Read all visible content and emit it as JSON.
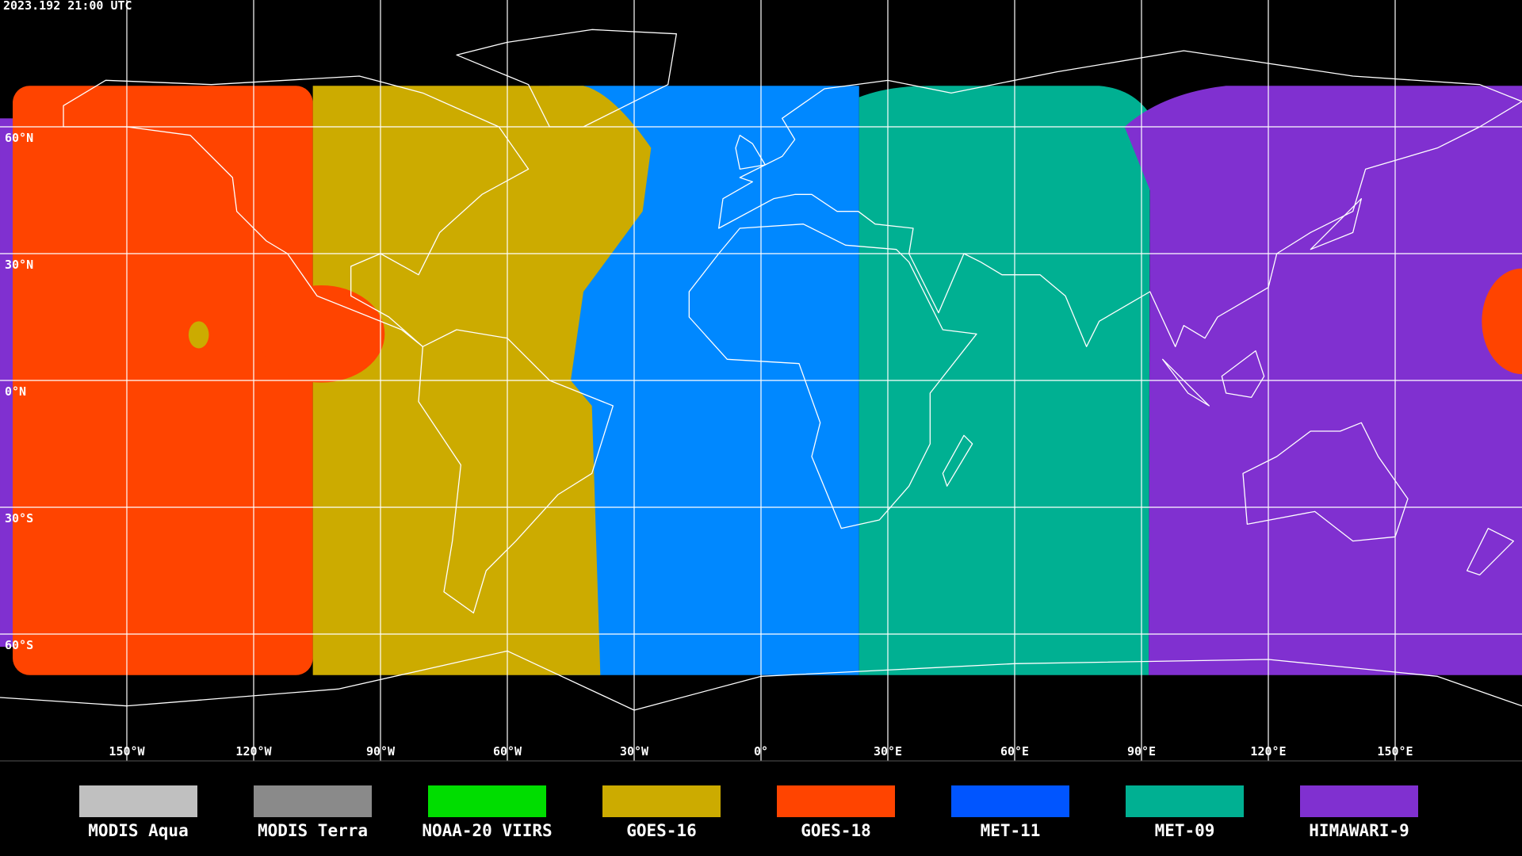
{
  "header": {
    "timestamp": "2023.192 21:00 UTC"
  },
  "map": {
    "latitude_labels": [
      "60°N",
      "30°N",
      "0°N",
      "30°S",
      "60°S"
    ],
    "longitude_labels": [
      "150°W",
      "120°W",
      "90°W",
      "60°W",
      "30°W",
      "0°",
      "30°E",
      "60°E",
      "90°E",
      "120°E",
      "150°E"
    ]
  },
  "legend": [
    {
      "label": "MODIS Aqua",
      "color": "#c0c0c0"
    },
    {
      "label": "MODIS Terra",
      "color": "#8a8a8a"
    },
    {
      "label": "NOAA-20 VIIRS",
      "color": "#00dd00"
    },
    {
      "label": "GOES-16",
      "color": "#ccab00"
    },
    {
      "label": "GOES-18",
      "color": "#ff4400"
    },
    {
      "label": "MET-11",
      "color": "#0055ff"
    },
    {
      "label": "MET-09",
      "color": "#00b092"
    },
    {
      "label": "HIMAWARI-9",
      "color": "#8030d0"
    }
  ]
}
